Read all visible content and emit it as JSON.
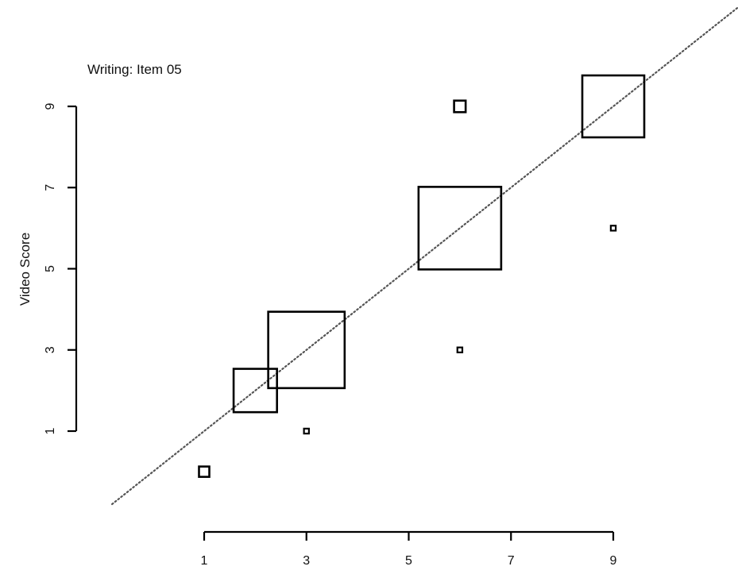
{
  "chart_data": {
    "type": "scatter",
    "title": "Writing: Item 05",
    "xlabel": "",
    "ylabel": "Video Score",
    "xlim": [
      1,
      9
    ],
    "ylim": [
      1,
      9
    ],
    "x_ticks": [
      1,
      3,
      5,
      7,
      9
    ],
    "y_ticks": [
      1,
      3,
      5,
      7,
      9
    ],
    "grid": false,
    "reference_line": {
      "style": "dotted",
      "slope": 1,
      "intercept": 0
    },
    "marker": "open-square",
    "marker_size_meaning": "relative frequency of each score pair",
    "points": [
      {
        "x": 1,
        "y": 0,
        "size": 0.25
      },
      {
        "x": 2,
        "y": 2,
        "size": 1.05
      },
      {
        "x": 3,
        "y": 3,
        "size": 1.85
      },
      {
        "x": 3,
        "y": 1,
        "size": 0.12
      },
      {
        "x": 6,
        "y": 6,
        "size": 2.0
      },
      {
        "x": 6,
        "y": 3,
        "size": 0.12
      },
      {
        "x": 6,
        "y": 9,
        "size": 0.28
      },
      {
        "x": 9,
        "y": 9,
        "size": 1.5
      },
      {
        "x": 9,
        "y": 6,
        "size": 0.12
      }
    ]
  }
}
